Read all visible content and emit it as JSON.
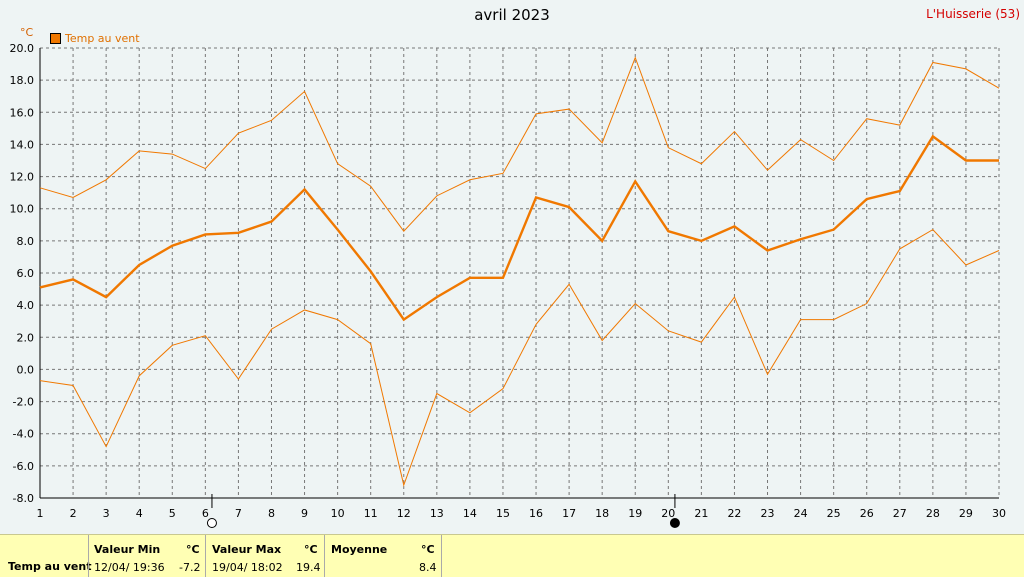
{
  "header": {
    "title": "avril 2023",
    "station": "L'Huisserie (53)",
    "unit": "°C",
    "legend_label": "Temp au vent"
  },
  "colors": {
    "series": "#f07800",
    "grid": "#777777",
    "plot_bg": "#eef4f4",
    "summary_bg": "#ffffb4"
  },
  "chart_data": {
    "type": "line",
    "x": [
      1,
      2,
      3,
      4,
      5,
      6,
      7,
      8,
      9,
      10,
      11,
      12,
      13,
      14,
      15,
      16,
      17,
      18,
      19,
      20,
      21,
      22,
      23,
      24,
      25,
      26,
      27,
      28,
      29,
      30
    ],
    "xlim": [
      1,
      30
    ],
    "ylim": [
      -8,
      20
    ],
    "yticks": [
      "20.0",
      "18.0",
      "16.0",
      "14.0",
      "12.0",
      "10.0",
      "8.0",
      "6.0",
      "4.0",
      "2.0",
      "0.0",
      "-2.0",
      "-4.0",
      "-6.0",
      "-8.0"
    ],
    "ylabel": "°C",
    "grid": true,
    "legend_position": "top-left",
    "series": [
      {
        "name": "Temp au vent",
        "role": "mean",
        "values": [
          5.1,
          5.6,
          4.5,
          6.5,
          7.7,
          8.4,
          8.5,
          9.2,
          11.2,
          8.7,
          6.1,
          3.1,
          4.5,
          5.7,
          5.7,
          10.7,
          10.1,
          8.0,
          11.7,
          8.6,
          8.0,
          8.9,
          7.4,
          8.1,
          8.7,
          10.6,
          11.1,
          14.5,
          13.0,
          13.0
        ]
      },
      {
        "role": "max",
        "values": [
          11.3,
          10.7,
          11.8,
          13.6,
          13.4,
          12.5,
          14.7,
          15.5,
          17.3,
          12.8,
          11.4,
          8.6,
          10.8,
          11.8,
          12.2,
          15.9,
          16.2,
          14.1,
          19.4,
          13.8,
          12.8,
          14.8,
          12.4,
          14.3,
          13.0,
          15.6,
          15.2,
          19.1,
          18.7,
          17.5
        ]
      },
      {
        "role": "min",
        "values": [
          -0.7,
          -1.0,
          -4.8,
          -0.4,
          1.5,
          2.1,
          -0.6,
          2.5,
          3.7,
          3.1,
          1.6,
          -7.2,
          -1.5,
          -2.7,
          -1.2,
          2.8,
          5.3,
          1.8,
          4.1,
          2.4,
          1.7,
          4.5,
          -0.3,
          3.1,
          3.1,
          4.1,
          7.5,
          8.7,
          6.5,
          7.4
        ]
      }
    ],
    "moon_phases": [
      {
        "day": 6.2,
        "phase": "full"
      },
      {
        "day": 20.2,
        "phase": "new"
      }
    ]
  },
  "summary": {
    "row_label": "Temp au vent",
    "min_header": "Valeur Min",
    "min_unit": "°C",
    "min_date": "12/04/  19:36",
    "min_value": "-7.2",
    "max_header": "Valeur Max",
    "max_unit": "°C",
    "max_date": "19/04/  18:02",
    "max_value": "19.4",
    "avg_header": "Moyenne",
    "avg_unit": "°C",
    "avg_value": "8.4"
  }
}
